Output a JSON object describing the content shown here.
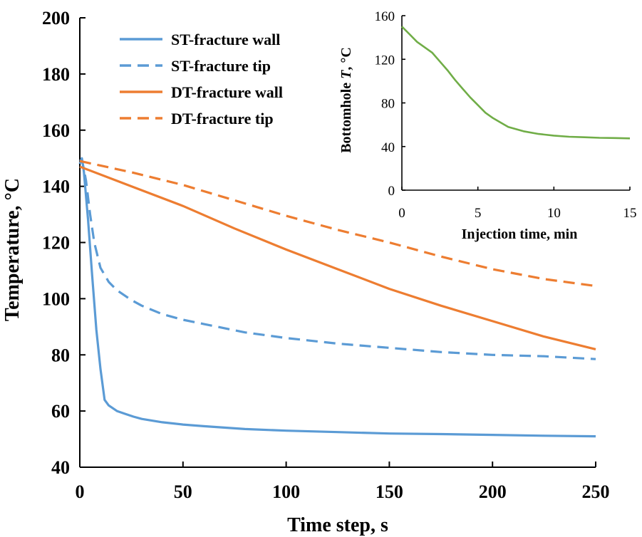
{
  "chart_data": [
    {
      "type": "line",
      "xlabel": "Time step, s",
      "ylabel": "Temperature, °C",
      "xlim": [
        0,
        250
      ],
      "ylim": [
        40,
        200
      ],
      "xticks": [
        0,
        50,
        100,
        150,
        200,
        250
      ],
      "yticks": [
        40,
        60,
        80,
        100,
        120,
        140,
        160,
        180,
        200
      ],
      "grid": false,
      "legend_position": "top-left",
      "series": [
        {
          "name": "ST-fracture wall",
          "color": "#5b9bd5",
          "dash": "solid",
          "x": [
            0,
            1,
            2,
            4,
            6,
            8,
            10,
            12,
            14,
            18,
            22,
            26,
            30,
            40,
            50,
            60,
            80,
            100,
            125,
            150,
            175,
            200,
            225,
            250
          ],
          "y": [
            148,
            150,
            145,
            128,
            108,
            89,
            75,
            64,
            62,
            60,
            59,
            58,
            57.2,
            56,
            55.2,
            54.6,
            53.6,
            53,
            52.5,
            52,
            51.8,
            51.5,
            51.2,
            51
          ]
        },
        {
          "name": "ST-fracture tip",
          "color": "#5b9bd5",
          "dash": "dashed",
          "x": [
            0,
            1,
            2,
            3,
            5,
            7,
            10,
            14,
            18,
            25,
            30,
            40,
            50,
            60,
            80,
            100,
            125,
            150,
            175,
            200,
            225,
            250
          ],
          "y": [
            149,
            149.5,
            146,
            142,
            130,
            120,
            111,
            106,
            103,
            99.5,
            97.5,
            94.5,
            92.5,
            91,
            88,
            86,
            84,
            82.5,
            81,
            80,
            79.5,
            78.5
          ]
        },
        {
          "name": "DT-fracture wall",
          "color": "#ed7d31",
          "dash": "solid",
          "x": [
            0,
            25,
            50,
            75,
            100,
            125,
            150,
            175,
            200,
            225,
            250
          ],
          "y": [
            147,
            140,
            133,
            125,
            117.5,
            110.5,
            103.5,
            97.5,
            92,
            86.5,
            82
          ]
        },
        {
          "name": "DT-fracture tip",
          "color": "#ed7d31",
          "dash": "dashed",
          "x": [
            0,
            25,
            50,
            75,
            100,
            125,
            150,
            175,
            200,
            225,
            250
          ],
          "y": [
            149,
            145,
            140.5,
            135,
            129.5,
            124.5,
            120,
            115,
            110.5,
            107,
            104.5
          ]
        }
      ]
    },
    {
      "type": "line",
      "xlabel_prefix": "Injection time, min",
      "ylabel_prefix": "Bottomhole ",
      "ylabel_var": "T",
      "ylabel_suffix": ", °C",
      "xlim": [
        0,
        15
      ],
      "ylim": [
        0,
        160
      ],
      "xticks": [
        0,
        5,
        10,
        15
      ],
      "yticks": [
        0,
        40,
        80,
        120,
        160
      ],
      "grid": false,
      "series": [
        {
          "color": "#70ad47",
          "dash": "solid",
          "x": [
            0,
            0.5,
            1,
            1.5,
            2,
            2.5,
            3,
            3.5,
            4,
            4.5,
            5,
            5.5,
            6,
            6.5,
            7,
            7.5,
            8,
            9,
            10,
            11,
            12,
            13,
            14,
            15
          ],
          "y": [
            150,
            143,
            136,
            131,
            126,
            118,
            110,
            101,
            93,
            85,
            78,
            71,
            66,
            62,
            58,
            56,
            54,
            51.5,
            50,
            49,
            48.5,
            48,
            47.8,
            47.5
          ]
        }
      ]
    }
  ]
}
